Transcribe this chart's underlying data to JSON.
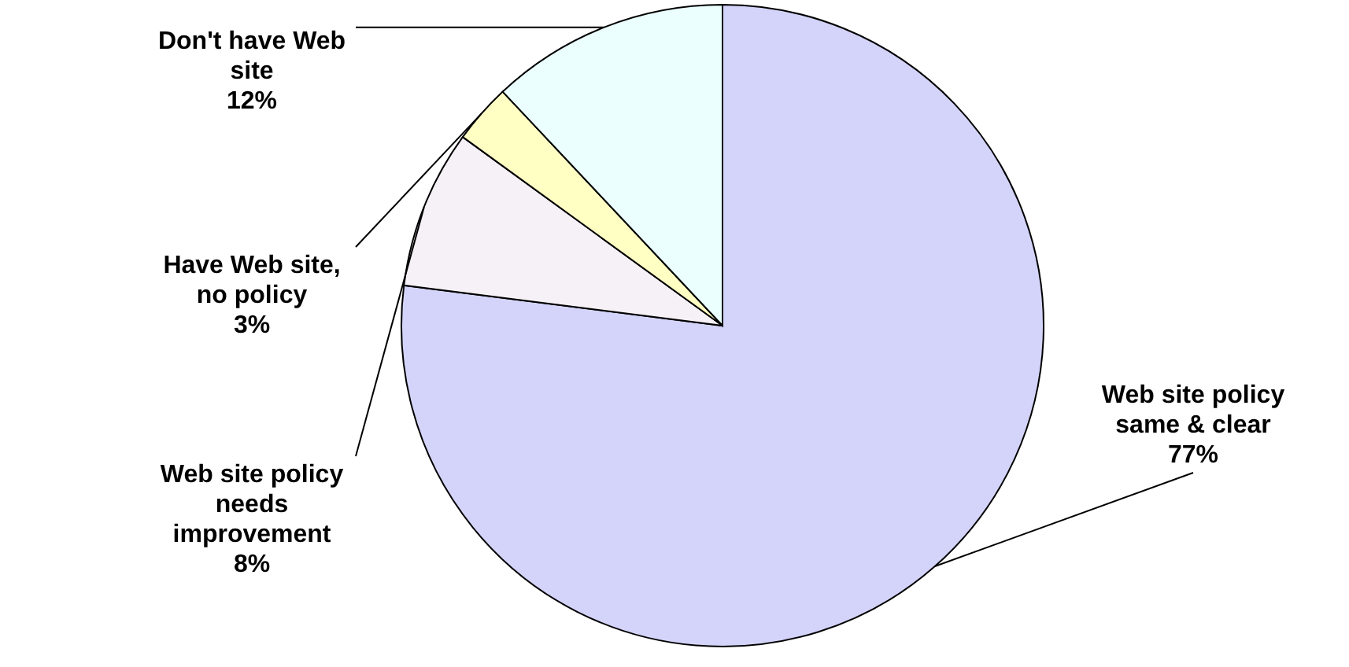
{
  "chart_data": {
    "type": "pie",
    "categories": [
      "Web site policy same & clear",
      "Web site policy needs improvement",
      "Have Web site, no policy",
      "Don't have Web site"
    ],
    "values": [
      77,
      8,
      3,
      12
    ],
    "value_labels": [
      "77%",
      "8%",
      "3%",
      "12%"
    ],
    "colors": [
      "#d4d4fa",
      "#f6f1f6",
      "#ffffc4",
      "#ebffff"
    ]
  }
}
